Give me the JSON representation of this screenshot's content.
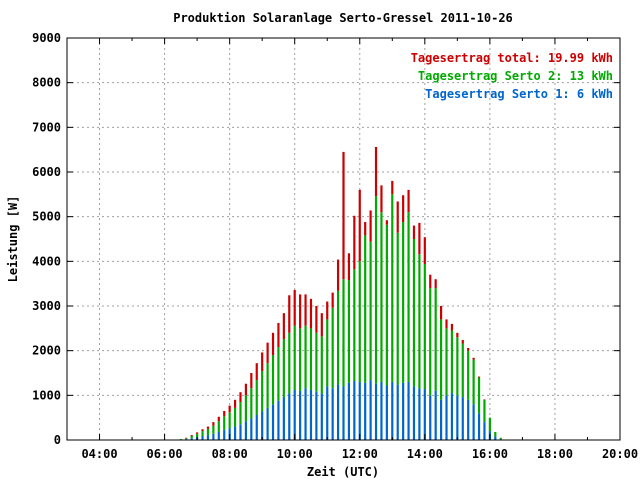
{
  "chart_data": {
    "type": "bar",
    "title": "Produktion Solaranlage Serto-Gressel 2011-10-26",
    "xlabel": "Zeit (UTC)",
    "ylabel": "Leistung [W]",
    "ylim": [
      0,
      9000
    ],
    "xlim_hours": [
      3.0,
      20.0
    ],
    "stacked": true,
    "grid": true,
    "legend_position": "top-right",
    "x_ticks": [
      "04:00",
      "06:00",
      "08:00",
      "10:00",
      "12:00",
      "14:00",
      "16:00",
      "18:00",
      "20:00"
    ],
    "y_ticks": [
      "0",
      "1000",
      "2000",
      "3000",
      "4000",
      "5000",
      "6000",
      "7000",
      "8000",
      "9000"
    ],
    "legend": [
      {
        "label": "Tagesertrag total: 19.99 kWh",
        "color": "#cc0000"
      },
      {
        "label": "Tagesertrag Serto 2: 13 kWh",
        "color": "#00aa00"
      },
      {
        "label": "Tagesertrag Serto 1: 6 kWh",
        "color": "#0066cc"
      }
    ],
    "x": [
      "06:30",
      "06:40",
      "06:50",
      "07:00",
      "07:10",
      "07:20",
      "07:30",
      "07:40",
      "07:50",
      "08:00",
      "08:10",
      "08:20",
      "08:30",
      "08:40",
      "08:50",
      "09:00",
      "09:10",
      "09:20",
      "09:30",
      "09:40",
      "09:50",
      "10:00",
      "10:10",
      "10:20",
      "10:30",
      "10:40",
      "10:50",
      "11:00",
      "11:10",
      "11:20",
      "11:30",
      "11:40",
      "11:50",
      "12:00",
      "12:10",
      "12:20",
      "12:30",
      "12:40",
      "12:50",
      "13:00",
      "13:10",
      "13:20",
      "13:30",
      "13:40",
      "13:50",
      "14:00",
      "14:10",
      "14:20",
      "14:30",
      "14:40",
      "14:50",
      "15:00",
      "15:10",
      "15:20",
      "15:30",
      "15:40",
      "15:50",
      "16:00",
      "16:10",
      "16:20"
    ],
    "series": [
      {
        "name": "Tagesertrag Serto 1: 6 kWh",
        "color": "#0066cc",
        "values": [
          10,
          20,
          40,
          60,
          90,
          110,
          140,
          180,
          230,
          260,
          300,
          350,
          420,
          480,
          560,
          640,
          720,
          800,
          880,
          960,
          1040,
          1120,
          1100,
          1160,
          1120,
          1080,
          1040,
          1200,
          1160,
          1240,
          1200,
          1280,
          1320,
          1300,
          1280,
          1340,
          1260,
          1300,
          1220,
          1300,
          1240,
          1280,
          1300,
          1200,
          1160,
          1140,
          1000,
          1100,
          900,
          1000,
          1050,
          1000,
          960,
          900,
          800,
          600,
          400,
          200,
          80,
          20
        ]
      },
      {
        "name": "Tagesertrag Serto 2: 13 kWh",
        "color": "#00aa00",
        "values": [
          10,
          20,
          50,
          80,
          110,
          140,
          180,
          240,
          300,
          360,
          420,
          500,
          580,
          680,
          780,
          900,
          1000,
          1100,
          1200,
          1300,
          1360,
          1440,
          1400,
          1400,
          1380,
          1320,
          1280,
          1500,
          1800,
          2100,
          2400,
          2300,
          2500,
          2700,
          3300,
          3100,
          4200,
          3800,
          3600,
          4200,
          3400,
          3600,
          3800,
          3300,
          3000,
          2800,
          2400,
          2300,
          1800,
          1500,
          1400,
          1300,
          1200,
          1100,
          1000,
          800,
          500,
          300,
          100,
          30
        ]
      },
      {
        "name": "Tagesertrag total: 19.99 kWh",
        "color": "#cc0000",
        "values": [
          0,
          10,
          20,
          30,
          40,
          50,
          80,
          100,
          120,
          150,
          180,
          220,
          260,
          340,
          380,
          420,
          460,
          500,
          540,
          580,
          840,
          800,
          760,
          700,
          660,
          600,
          520,
          400,
          340,
          700,
          2850,
          600,
          1200,
          1600,
          300,
          700,
          1100,
          600,
          100,
          300,
          700,
          600,
          500,
          300,
          700,
          600,
          300,
          200,
          300,
          200,
          150,
          100,
          80,
          60,
          40,
          20,
          10,
          0,
          0,
          0
        ]
      }
    ]
  }
}
